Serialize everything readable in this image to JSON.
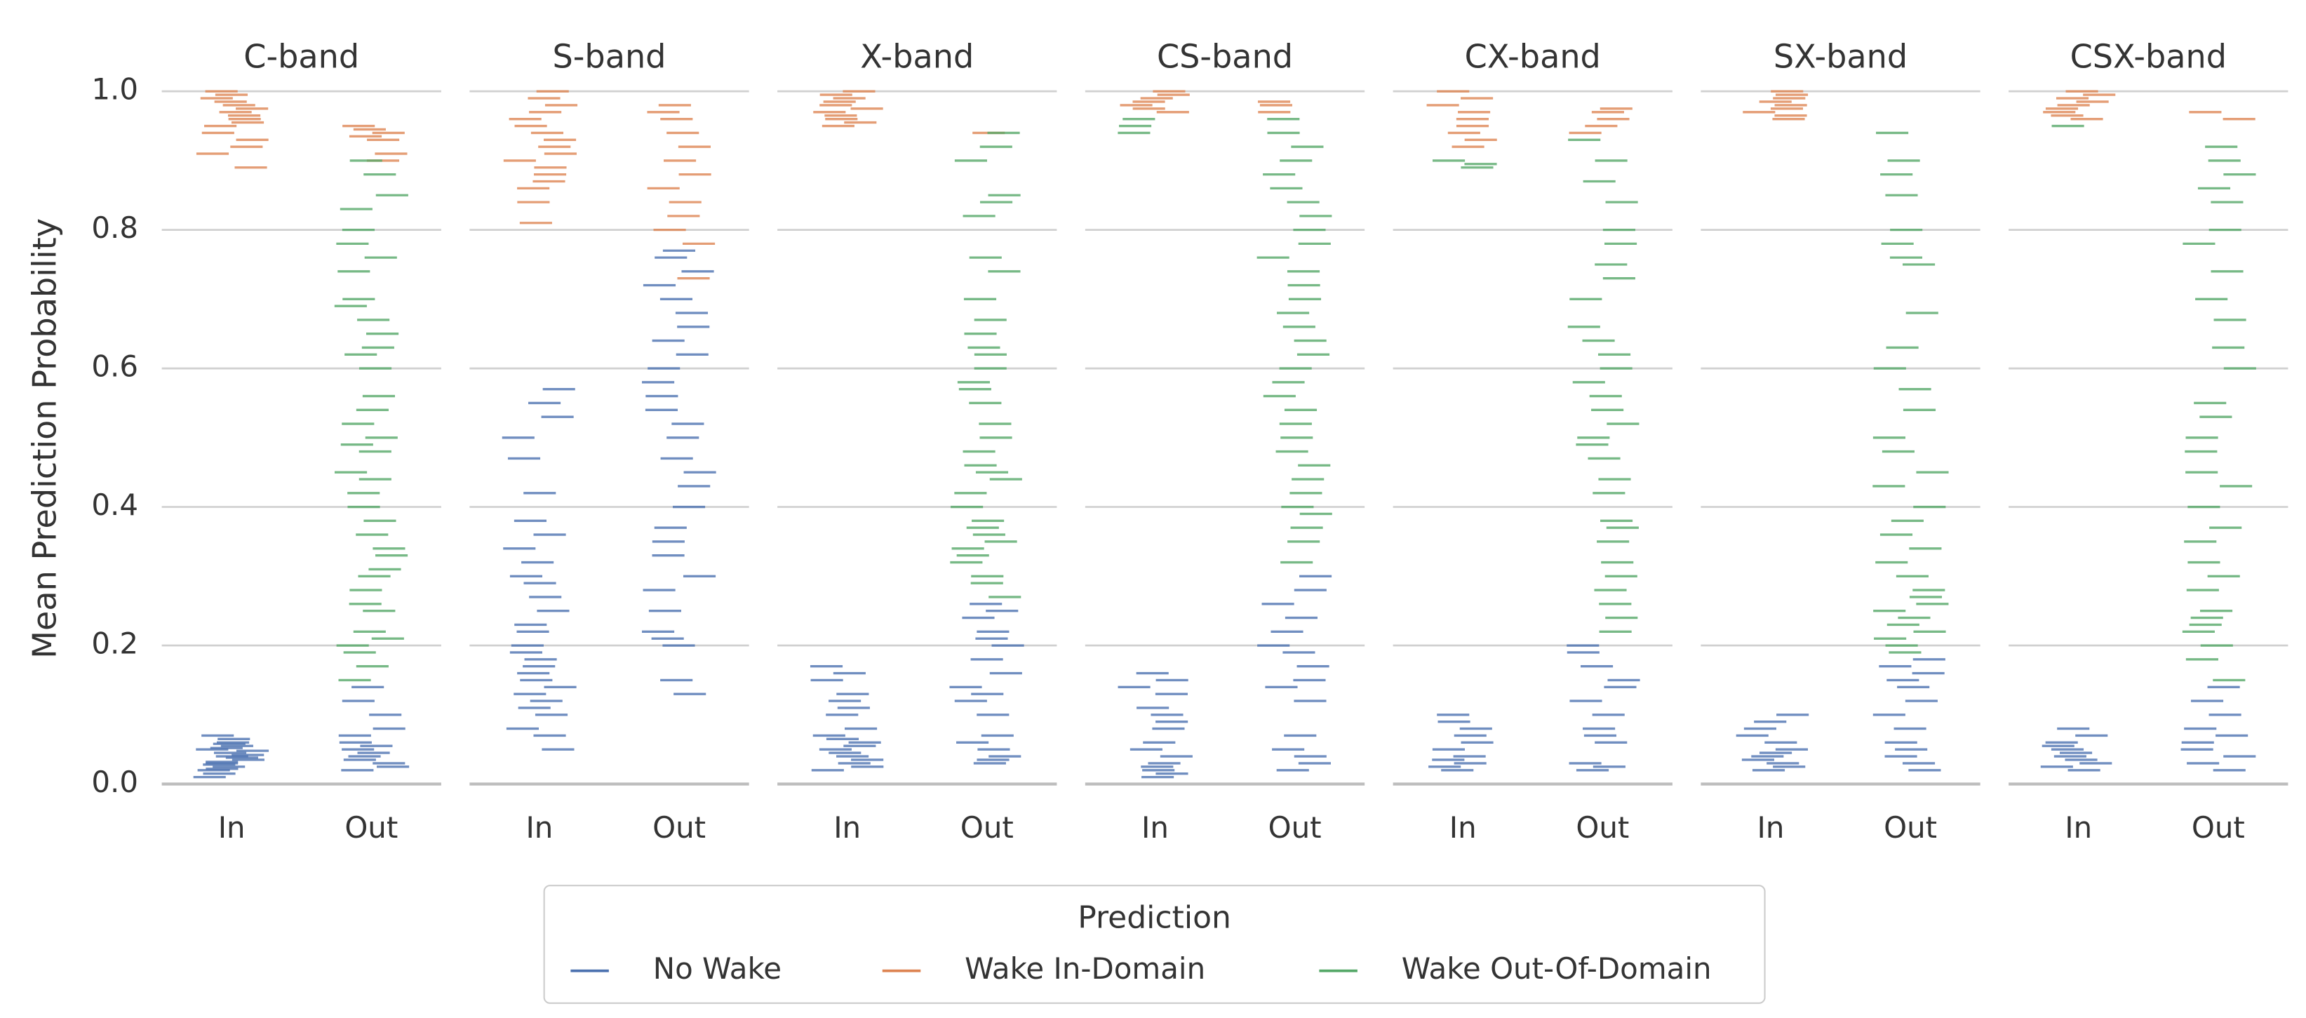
{
  "chart_data": {
    "type": "strip",
    "y_label": "Mean Prediction Probability",
    "ylim": [
      0,
      1
    ],
    "yticks": [
      {
        "value": 0,
        "label": "0.0"
      },
      {
        "value": 0.2,
        "label": "0.2"
      },
      {
        "value": 0.4,
        "label": "0.4"
      },
      {
        "value": 0.6,
        "label": "0.6"
      },
      {
        "value": 0.8,
        "label": "0.8"
      },
      {
        "value": 1,
        "label": "1.0"
      }
    ],
    "grid": true,
    "legend_title": "Prediction",
    "series": [
      {
        "name": "No Wake",
        "color": "#4c72b0"
      },
      {
        "name": "Wake In-Domain",
        "color": "#dd8452"
      },
      {
        "name": "Wake Out-Of-Domain",
        "color": "#55a868"
      }
    ],
    "facets": [
      {
        "title": "C-band",
        "categories": [
          "In",
          "Out"
        ],
        "values": [
          [
            [
              0.01,
              0.015,
              0.02,
              0.022,
              0.025,
              0.028,
              0.03,
              0.032,
              0.035,
              0.038,
              0.04,
              0.042,
              0.045,
              0.048,
              0.05,
              0.052,
              0.055,
              0.058,
              0.06,
              0.065,
              0.07
            ],
            [
              0.02,
              0.025,
              0.03,
              0.035,
              0.04,
              0.045,
              0.05,
              0.055,
              0.06,
              0.07,
              0.08,
              0.1,
              0.12,
              0.14
            ]
          ],
          [
            [
              1.0,
              0.995,
              0.99,
              0.985,
              0.98,
              0.975,
              0.97,
              0.965,
              0.96,
              0.955,
              0.95,
              0.94,
              0.93,
              0.92,
              0.91,
              0.89
            ],
            [
              0.95,
              0.945,
              0.94,
              0.935,
              0.93,
              0.91,
              0.9
            ]
          ],
          [
            [],
            [
              0.15,
              0.17,
              0.19,
              0.2,
              0.21,
              0.22,
              0.25,
              0.26,
              0.28,
              0.3,
              0.31,
              0.33,
              0.34,
              0.36,
              0.38,
              0.4,
              0.42,
              0.44,
              0.45,
              0.48,
              0.49,
              0.5,
              0.52,
              0.54,
              0.56,
              0.6,
              0.62,
              0.63,
              0.65,
              0.67,
              0.69,
              0.7,
              0.74,
              0.76,
              0.78,
              0.8,
              0.83,
              0.85,
              0.88,
              0.9
            ]
          ]
        ]
      },
      {
        "title": "S-band",
        "categories": [
          "In",
          "Out"
        ],
        "values": [
          [
            [
              0.05,
              0.07,
              0.08,
              0.1,
              0.11,
              0.12,
              0.13,
              0.14,
              0.15,
              0.16,
              0.17,
              0.18,
              0.19,
              0.2,
              0.22,
              0.23,
              0.25,
              0.27,
              0.29,
              0.3,
              0.32,
              0.34,
              0.36,
              0.38,
              0.42,
              0.47,
              0.5,
              0.53,
              0.55,
              0.57
            ],
            [
              0.13,
              0.15,
              0.2,
              0.21,
              0.22,
              0.25,
              0.28,
              0.3,
              0.33,
              0.35,
              0.37,
              0.4,
              0.43,
              0.45,
              0.47,
              0.5,
              0.52,
              0.54,
              0.56,
              0.58,
              0.6,
              0.62,
              0.64,
              0.66,
              0.68,
              0.7,
              0.72,
              0.74,
              0.76,
              0.77
            ]
          ],
          [
            [
              0.81,
              0.84,
              0.86,
              0.87,
              0.88,
              0.89,
              0.9,
              0.91,
              0.92,
              0.93,
              0.94,
              0.95,
              0.96,
              0.97,
              0.98,
              0.99,
              1.0
            ],
            [
              0.73,
              0.78,
              0.8,
              0.82,
              0.84,
              0.86,
              0.88,
              0.9,
              0.92,
              0.94,
              0.96,
              0.97,
              0.98
            ]
          ],
          [
            [],
            []
          ]
        ]
      },
      {
        "title": "X-band",
        "categories": [
          "In",
          "Out"
        ],
        "values": [
          [
            [
              0.02,
              0.025,
              0.03,
              0.035,
              0.04,
              0.045,
              0.05,
              0.055,
              0.06,
              0.065,
              0.07,
              0.08,
              0.1,
              0.11,
              0.12,
              0.13,
              0.15,
              0.16,
              0.17
            ],
            [
              0.03,
              0.035,
              0.04,
              0.05,
              0.06,
              0.07,
              0.1,
              0.12,
              0.13,
              0.14,
              0.16,
              0.18,
              0.2,
              0.21,
              0.22,
              0.24,
              0.25,
              0.26
            ]
          ],
          [
            [
              0.95,
              0.955,
              0.96,
              0.965,
              0.97,
              0.975,
              0.98,
              0.985,
              0.99,
              0.995,
              1.0
            ],
            [
              0.94
            ]
          ],
          [
            [],
            [
              0.27,
              0.29,
              0.3,
              0.32,
              0.33,
              0.34,
              0.35,
              0.36,
              0.37,
              0.38,
              0.4,
              0.42,
              0.44,
              0.45,
              0.46,
              0.48,
              0.5,
              0.52,
              0.55,
              0.57,
              0.58,
              0.6,
              0.62,
              0.63,
              0.65,
              0.67,
              0.7,
              0.74,
              0.76,
              0.82,
              0.84,
              0.85,
              0.9,
              0.92,
              0.94
            ]
          ]
        ]
      },
      {
        "title": "CS-band",
        "categories": [
          "In",
          "Out"
        ],
        "values": [
          [
            [
              0.01,
              0.015,
              0.02,
              0.025,
              0.03,
              0.04,
              0.05,
              0.06,
              0.08,
              0.09,
              0.1,
              0.11,
              0.13,
              0.14,
              0.15,
              0.16
            ],
            [
              0.02,
              0.03,
              0.04,
              0.05,
              0.07,
              0.12,
              0.14,
              0.15,
              0.17,
              0.19,
              0.2,
              0.22,
              0.24,
              0.26,
              0.28,
              0.3
            ]
          ],
          [
            [
              0.97,
              0.975,
              0.98,
              0.985,
              0.99,
              0.995,
              1.0
            ],
            [
              0.97,
              0.98,
              0.985
            ]
          ],
          [
            [
              0.94,
              0.95,
              0.96
            ],
            [
              0.32,
              0.35,
              0.37,
              0.39,
              0.4,
              0.42,
              0.44,
              0.46,
              0.48,
              0.5,
              0.52,
              0.54,
              0.56,
              0.58,
              0.6,
              0.62,
              0.64,
              0.66,
              0.68,
              0.7,
              0.72,
              0.74,
              0.76,
              0.78,
              0.8,
              0.82,
              0.84,
              0.86,
              0.88,
              0.9,
              0.92,
              0.94,
              0.96
            ]
          ]
        ]
      },
      {
        "title": "CX-band",
        "categories": [
          "In",
          "Out"
        ],
        "values": [
          [
            [
              0.02,
              0.025,
              0.03,
              0.035,
              0.04,
              0.05,
              0.06,
              0.07,
              0.08,
              0.09,
              0.1
            ],
            [
              0.02,
              0.025,
              0.03,
              0.06,
              0.07,
              0.08,
              0.1,
              0.12,
              0.14,
              0.15,
              0.17,
              0.19,
              0.2
            ]
          ],
          [
            [
              0.92,
              0.93,
              0.94,
              0.95,
              0.96,
              0.97,
              0.98,
              0.99,
              1.0
            ],
            [
              0.94,
              0.95,
              0.96,
              0.97,
              0.975
            ]
          ],
          [
            [
              0.89,
              0.895,
              0.9
            ],
            [
              0.22,
              0.24,
              0.26,
              0.28,
              0.3,
              0.32,
              0.35,
              0.37,
              0.38,
              0.42,
              0.44,
              0.47,
              0.49,
              0.5,
              0.52,
              0.54,
              0.56,
              0.58,
              0.6,
              0.62,
              0.64,
              0.66,
              0.7,
              0.73,
              0.75,
              0.78,
              0.8,
              0.84,
              0.87,
              0.9,
              0.93
            ]
          ]
        ]
      },
      {
        "title": "SX-band",
        "categories": [
          "In",
          "Out"
        ],
        "values": [
          [
            [
              0.02,
              0.025,
              0.03,
              0.035,
              0.04,
              0.045,
              0.05,
              0.06,
              0.07,
              0.08,
              0.09,
              0.1
            ],
            [
              0.02,
              0.03,
              0.04,
              0.05,
              0.06,
              0.08,
              0.1,
              0.12,
              0.14,
              0.15,
              0.16,
              0.17,
              0.18
            ]
          ],
          [
            [
              0.96,
              0.965,
              0.97,
              0.975,
              0.98,
              0.985,
              0.99,
              0.995,
              1.0
            ],
            []
          ],
          [
            [],
            [
              0.19,
              0.2,
              0.21,
              0.22,
              0.23,
              0.24,
              0.25,
              0.26,
              0.27,
              0.28,
              0.3,
              0.32,
              0.34,
              0.36,
              0.38,
              0.4,
              0.43,
              0.45,
              0.48,
              0.5,
              0.54,
              0.57,
              0.6,
              0.63,
              0.68,
              0.75,
              0.76,
              0.78,
              0.8,
              0.85,
              0.88,
              0.9,
              0.94
            ]
          ]
        ]
      },
      {
        "title": "CSX-band",
        "categories": [
          "In",
          "Out"
        ],
        "values": [
          [
            [
              0.02,
              0.025,
              0.03,
              0.035,
              0.04,
              0.045,
              0.05,
              0.055,
              0.06,
              0.07,
              0.08
            ],
            [
              0.02,
              0.03,
              0.04,
              0.05,
              0.06,
              0.07,
              0.08,
              0.1,
              0.12,
              0.14
            ]
          ],
          [
            [
              0.96,
              0.965,
              0.97,
              0.975,
              0.98,
              0.985,
              0.99,
              0.995,
              1.0
            ],
            [
              0.96,
              0.97
            ]
          ],
          [
            [
              0.95
            ],
            [
              0.15,
              0.18,
              0.2,
              0.22,
              0.23,
              0.24,
              0.25,
              0.28,
              0.3,
              0.32,
              0.35,
              0.37,
              0.4,
              0.43,
              0.45,
              0.48,
              0.5,
              0.53,
              0.55,
              0.6,
              0.63,
              0.67,
              0.7,
              0.74,
              0.78,
              0.8,
              0.84,
              0.86,
              0.88,
              0.9,
              0.92
            ]
          ]
        ]
      }
    ]
  }
}
